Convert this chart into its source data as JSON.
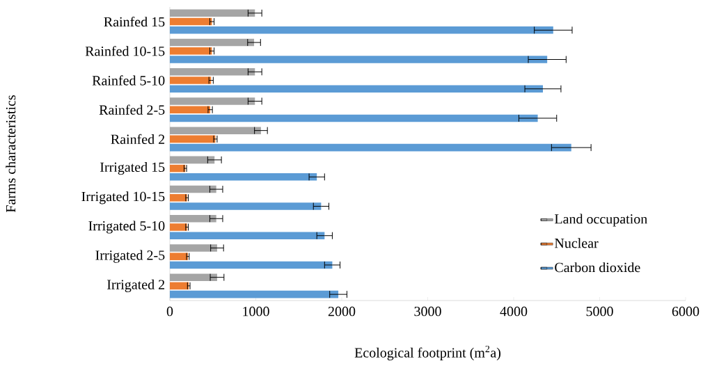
{
  "chart_data": {
    "type": "bar",
    "orientation": "horizontal",
    "xlabel": "Ecological footprint (m$^{2}$a)",
    "ylabel": "Farms characteristics",
    "categories": [
      "Rainfed 15",
      "Rainfed 10-15",
      "Rainfed 5-10",
      "Rainfed 2-5",
      "Rainfed 2",
      "Irrigated 15",
      "Irrigated 10-15",
      "Irrigated 5-10",
      "Irrigated 2-5",
      "Irrigated 2"
    ],
    "series": [
      {
        "name": "Land occupation",
        "color": "#a5a5a5",
        "values": [
          990,
          980,
          990,
          990,
          1060,
          520,
          540,
          540,
          550,
          550
        ],
        "errors": [
          80,
          75,
          80,
          80,
          75,
          80,
          75,
          75,
          75,
          80
        ]
      },
      {
        "name": "Nuclear",
        "color": "#ed7d31",
        "values": [
          490,
          490,
          480,
          470,
          530,
          180,
          200,
          200,
          210,
          220
        ],
        "errors": [
          25,
          25,
          25,
          25,
          20,
          15,
          15,
          15,
          15,
          15
        ]
      },
      {
        "name": "Carbon dioxide",
        "color": "#5b9bd5",
        "values": [
          4460,
          4390,
          4340,
          4280,
          4670,
          1710,
          1760,
          1800,
          1890,
          1960
        ],
        "errors": [
          220,
          220,
          210,
          220,
          230,
          90,
          90,
          90,
          90,
          100
        ]
      }
    ],
    "xlim": [
      0,
      6000
    ],
    "xticks": [
      0,
      1000,
      2000,
      3000,
      4000,
      5000,
      6000
    ],
    "grid": false,
    "legend": "right"
  }
}
